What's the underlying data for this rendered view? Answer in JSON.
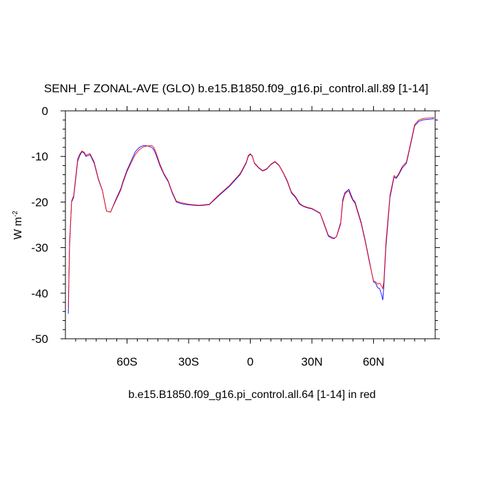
{
  "chart_data": {
    "type": "line",
    "title": "SENH_F ZONAL-AVE (GLO) b.e15.B1850.f09_g16.pi_control.all.89 [1-14]",
    "subtitle": "b.e15.B1850.f09_g16.pi_control.all.64 [1-14] in red",
    "xlabel": "",
    "ylabel": "W m",
    "ylabel_superscript": "-2",
    "xlim": [
      -90,
      90
    ],
    "ylim": [
      -50,
      0
    ],
    "x_ticks": [
      {
        "value": -60,
        "label": "60S"
      },
      {
        "value": -30,
        "label": "30S"
      },
      {
        "value": 0,
        "label": "0"
      },
      {
        "value": 30,
        "label": "30N"
      },
      {
        "value": 60,
        "label": "60N"
      }
    ],
    "y_ticks": [
      {
        "value": 0,
        "label": "0"
      },
      {
        "value": -10,
        "label": "-10"
      },
      {
        "value": -20,
        "label": "-20"
      },
      {
        "value": -30,
        "label": "-30"
      },
      {
        "value": -40,
        "label": "-40"
      },
      {
        "value": -50,
        "label": "-50"
      }
    ],
    "grid": false,
    "series": [
      {
        "color": "#0000ff",
        "x": [
          -88.6,
          -88,
          -87,
          -86,
          -85,
          -84,
          -83,
          -82,
          -81,
          -80,
          -79,
          -78,
          -76,
          -74,
          -72,
          -70,
          -68,
          -66,
          -64,
          -63,
          -62,
          -60,
          -58,
          -56,
          -54,
          -52,
          -50,
          -48,
          -47,
          -46,
          -44,
          -42,
          -40,
          -38,
          -36,
          -34,
          -32,
          -30,
          -25,
          -20,
          -15,
          -10,
          -5,
          -2,
          -1,
          0,
          1,
          2,
          4,
          6,
          8,
          10,
          12,
          14,
          16,
          18,
          20,
          22,
          24,
          26,
          28,
          30,
          32,
          34,
          36,
          38,
          40,
          41,
          42,
          44,
          45,
          46,
          47,
          48,
          49,
          50,
          51,
          52,
          54,
          56,
          58,
          60,
          61,
          62,
          63,
          64,
          64.5,
          65,
          66,
          68,
          70,
          71,
          72,
          74,
          76,
          78,
          80,
          82,
          84,
          86,
          88,
          89.5
        ],
        "y": [
          -44.5,
          -30,
          -20,
          -19,
          -15,
          -11,
          -9.8,
          -9,
          -9.2,
          -10,
          -9.8,
          -9.6,
          -11.5,
          -15,
          -17.5,
          -22,
          -22.2,
          -20,
          -18,
          -17,
          -15.5,
          -13,
          -11,
          -9,
          -8,
          -7.6,
          -7.7,
          -8,
          -8.5,
          -9.5,
          -12,
          -14,
          -15.5,
          -18,
          -20,
          -20.3,
          -20.5,
          -20.6,
          -20.8,
          -20.6,
          -18.5,
          -16.5,
          -14,
          -11.5,
          -10,
          -9.5,
          -10,
          -11.5,
          -12.5,
          -13.2,
          -12.8,
          -11.8,
          -11.2,
          -12,
          -13.6,
          -15.5,
          -18,
          -19,
          -20.5,
          -21,
          -21.3,
          -21.5,
          -22,
          -22.5,
          -25,
          -27.5,
          -28,
          -28,
          -27.5,
          -24.5,
          -19.5,
          -18,
          -17.6,
          -17.2,
          -18.4,
          -19.5,
          -20,
          -21.5,
          -24.5,
          -28.5,
          -33,
          -37.5,
          -37.8,
          -38.8,
          -39,
          -40.5,
          -41.5,
          -38.5,
          -30,
          -19,
          -14.5,
          -14.8,
          -14.2,
          -12.5,
          -11.5,
          -7.5,
          -3.3,
          -2.3,
          -2,
          -1.9,
          -1.8,
          -1.7
        ]
      },
      {
        "color": "#ff0000",
        "x": [
          -88.6,
          -88,
          -87,
          -86,
          -85,
          -84,
          -83,
          -82,
          -81,
          -80,
          -79,
          -78,
          -76,
          -74,
          -72,
          -70,
          -68,
          -66,
          -64,
          -63,
          -62,
          -60,
          -58,
          -56,
          -54,
          -52,
          -50,
          -48,
          -47,
          -46,
          -44,
          -42,
          -40,
          -38,
          -36,
          -34,
          -32,
          -30,
          -25,
          -20,
          -15,
          -10,
          -5,
          -2,
          -1,
          0,
          1,
          2,
          4,
          6,
          8,
          10,
          12,
          14,
          16,
          18,
          20,
          22,
          24,
          26,
          28,
          30,
          32,
          34,
          36,
          38,
          40,
          41,
          42,
          44,
          45,
          46,
          47,
          48,
          49,
          50,
          51,
          52,
          54,
          56,
          58,
          60,
          61,
          62,
          63,
          64,
          64.5,
          65,
          66,
          68,
          70,
          71,
          72,
          74,
          76,
          78,
          80,
          82,
          84,
          86,
          88,
          89.5
        ],
        "y": [
          -43,
          -29,
          -19.8,
          -18.6,
          -14.5,
          -10.5,
          -9.5,
          -8.8,
          -9,
          -9.8,
          -9.5,
          -9.4,
          -11.2,
          -14.8,
          -17.4,
          -22,
          -22.2,
          -20.2,
          -18.3,
          -17.3,
          -15.8,
          -13.3,
          -11.4,
          -9.6,
          -8.5,
          -7.9,
          -7.7,
          -7.6,
          -8,
          -9,
          -11.7,
          -13.8,
          -15.3,
          -17.8,
          -19.8,
          -20.1,
          -20.3,
          -20.5,
          -20.7,
          -20.5,
          -18.3,
          -16.3,
          -13.8,
          -11.3,
          -9.8,
          -9.4,
          -9.9,
          -11.4,
          -12.4,
          -13.1,
          -12.7,
          -11.7,
          -11.1,
          -11.9,
          -13.5,
          -15.3,
          -17.8,
          -18.8,
          -20.3,
          -20.9,
          -21.2,
          -21.4,
          -21.9,
          -22.4,
          -24.8,
          -27.3,
          -27.8,
          -27.9,
          -27.6,
          -24.8,
          -20,
          -18.3,
          -17.8,
          -17.6,
          -18.8,
          -19.7,
          -20.3,
          -21.8,
          -24.8,
          -28.8,
          -33.3,
          -37.3,
          -37.5,
          -38,
          -37.8,
          -38.5,
          -39,
          -37.5,
          -29,
          -18.5,
          -14.2,
          -14.6,
          -14,
          -12.2,
          -11.2,
          -7.2,
          -3,
          -2,
          -1.7,
          -1.6,
          -1.5,
          -1.4
        ]
      }
    ]
  }
}
